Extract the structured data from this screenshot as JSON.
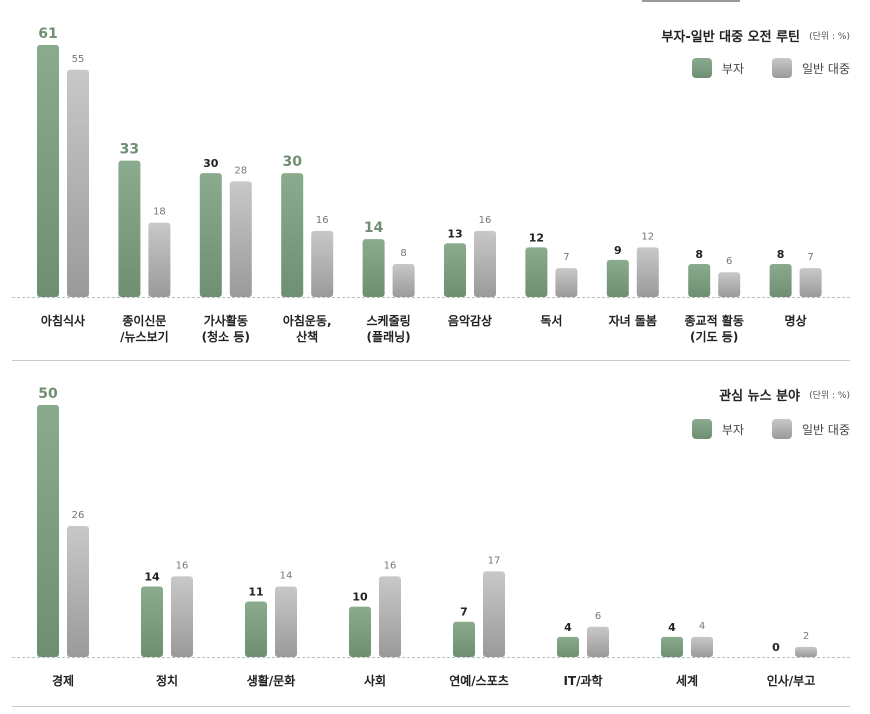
{
  "legend": {
    "rich": "부자",
    "general": "일반 대중"
  },
  "colors": {
    "rich_top": "#8aab8d",
    "rich_bottom": "#6f8f72",
    "general_top": "#c8c8c8",
    "general_bottom": "#9a9a9a",
    "rich_label": "#6f8f72",
    "general_label": "#777777"
  },
  "chart_data": [
    {
      "type": "bar",
      "title": "부자-일반 대중 오전 루틴",
      "unit": "(단위 : %)",
      "categories": [
        "아침식사",
        "종이신문\n/뉴스보기",
        "가사활동\n(청소 등)",
        "아침운동,\n산책",
        "스케줄링\n(플래닝)",
        "음악감상",
        "독서",
        "자녀 돌봄",
        "종교적 활동\n(기도 등)",
        "명상"
      ],
      "series": [
        {
          "name": "부자",
          "values": [
            61,
            33,
            30,
            30,
            14,
            13,
            12,
            9,
            8,
            8
          ]
        },
        {
          "name": "일반 대중",
          "values": [
            55,
            18,
            28,
            16,
            8,
            16,
            7,
            12,
            6,
            7
          ]
        }
      ],
      "highlight": [
        true,
        true,
        false,
        true,
        true,
        false,
        false,
        false,
        false,
        false
      ],
      "ylim": [
        0,
        61
      ]
    },
    {
      "type": "bar",
      "title": "관심 뉴스 분야",
      "unit": "(단위 : %)",
      "categories": [
        "경제",
        "정치",
        "생활/문화",
        "사회",
        "연예/스포츠",
        "IT/과학",
        "세계",
        "인사/부고"
      ],
      "series": [
        {
          "name": "부자",
          "values": [
            50,
            14,
            11,
            10,
            7,
            4,
            4,
            0
          ]
        },
        {
          "name": "일반 대중",
          "values": [
            26,
            16,
            14,
            16,
            17,
            6,
            4,
            2
          ]
        }
      ],
      "highlight": [
        true,
        false,
        false,
        false,
        false,
        false,
        false,
        false
      ],
      "ylim": [
        0,
        50
      ]
    }
  ]
}
